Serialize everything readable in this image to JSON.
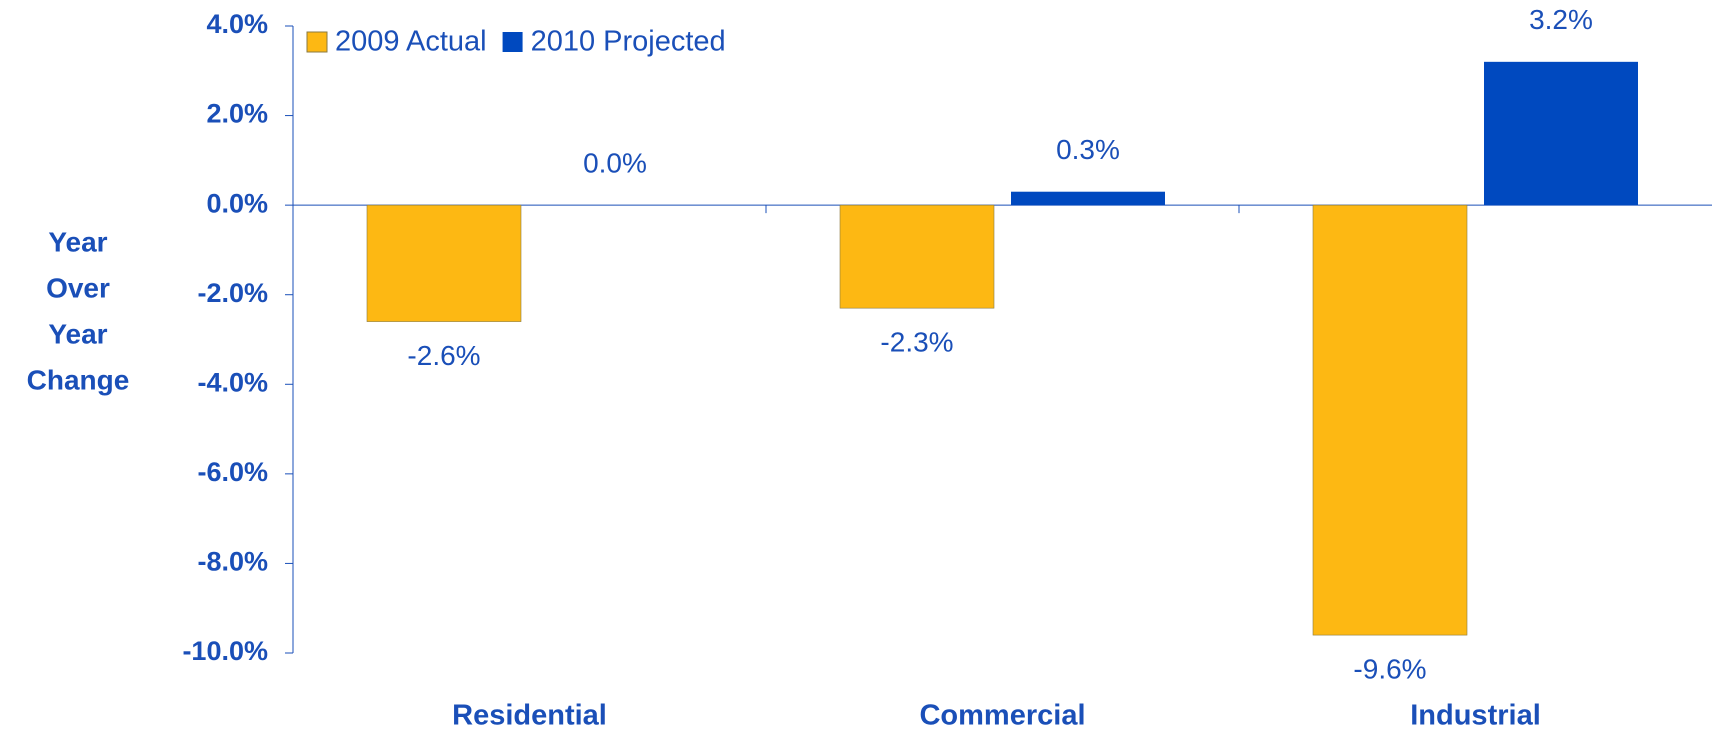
{
  "chart_data": {
    "type": "bar",
    "ylabel_lines": [
      "Year",
      "Over",
      "Year",
      "Change"
    ],
    "categories": [
      "Residential",
      "Commercial",
      "Industrial"
    ],
    "series": [
      {
        "name": "2009 Actual",
        "color": "#fdb813",
        "values": [
          -2.6,
          -2.3,
          -9.6
        ],
        "value_labels": [
          "-2.6%",
          "-2.3%",
          "-9.6%"
        ]
      },
      {
        "name": "2010 Projected",
        "color": "#0049bf",
        "values": [
          0.0,
          0.3,
          3.2
        ],
        "value_labels": [
          "0.0%",
          "0.3%",
          "3.2%"
        ]
      }
    ],
    "ylim": [
      -10,
      4
    ],
    "yticks": [
      {
        "value": 4,
        "label": "4.0%"
      },
      {
        "value": 2,
        "label": "2.0%"
      },
      {
        "value": 0,
        "label": "0.0%"
      },
      {
        "value": -2,
        "label": "-2.0%"
      },
      {
        "value": -4,
        "label": "-4.0%"
      },
      {
        "value": -6,
        "label": "-6.0%"
      },
      {
        "value": -8,
        "label": "-8.0%"
      },
      {
        "value": -10,
        "label": "-10.0%"
      }
    ],
    "legend": "top-left"
  }
}
